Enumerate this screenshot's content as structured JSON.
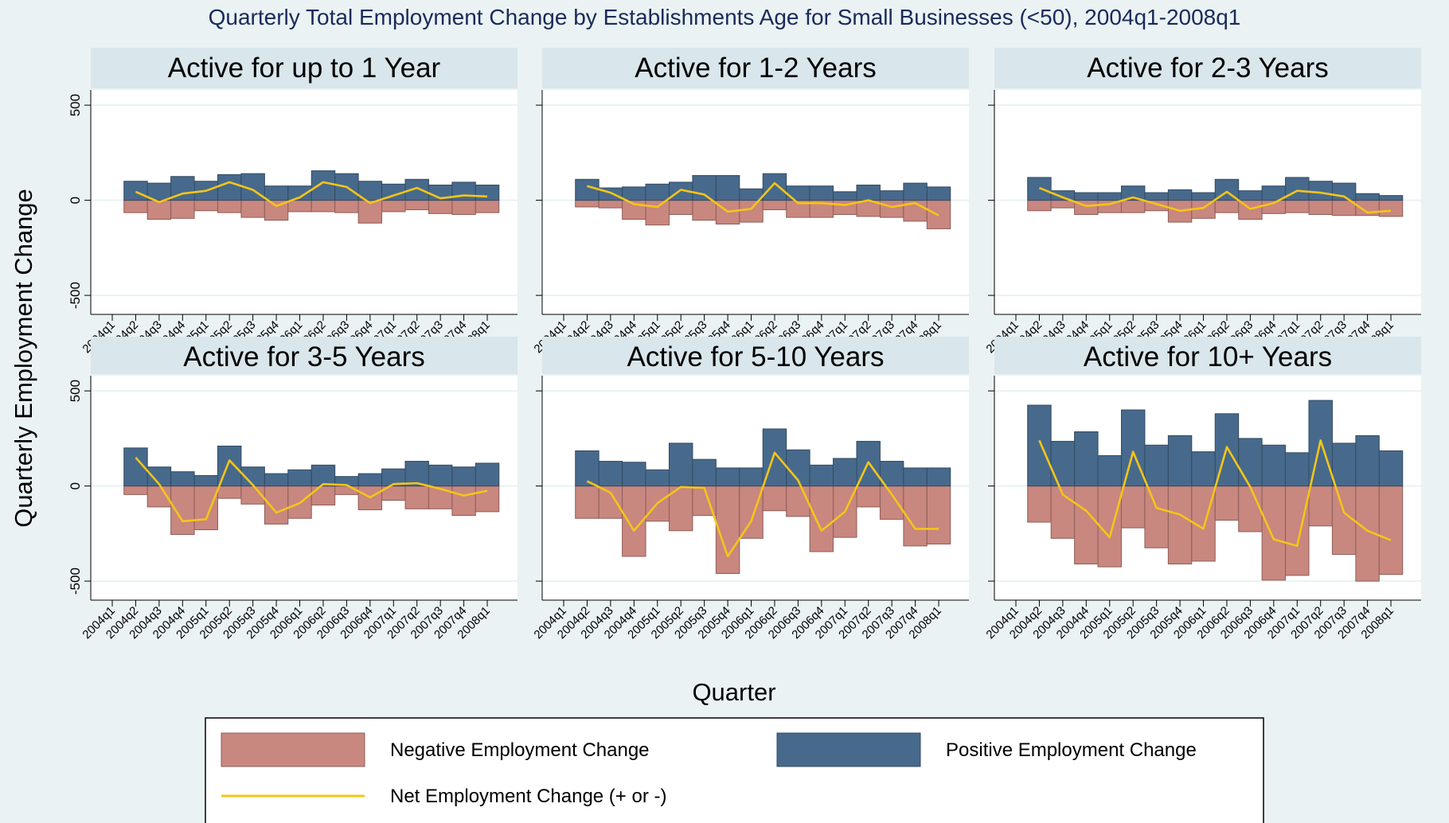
{
  "chart_data": {
    "type": "bar",
    "title": "Quarterly Total Employment Change by Establishments Age for Small Businesses (<50), 2004q1-2008q1",
    "x_label": "Quarter",
    "y_label": "Quarterly Employment Change",
    "categories": [
      "2004q1",
      "2004q2",
      "2004q3",
      "2004q4",
      "2005q1",
      "2005q2",
      "2005q3",
      "2005q4",
      "2006q1",
      "2006q2",
      "2006q3",
      "2006q4",
      "2007q1",
      "2007q2",
      "2007q3",
      "2007q4",
      "2008q1"
    ],
    "ylim": [
      -600,
      580
    ],
    "yticks": [
      -500,
      0,
      500
    ],
    "grid": true,
    "series": [
      {
        "name": "Negative Employment Change",
        "color": "#c8877f",
        "type": "bar"
      },
      {
        "name": "Positive Employment Change",
        "color": "#476a8c",
        "type": "bar"
      },
      {
        "name": "Net Employment Change (+ or -)",
        "color": "#f5c518",
        "type": "line"
      }
    ],
    "panels": [
      {
        "title": "Active for up to 1 Year",
        "values": [
          [
            null,
            -65,
            -100,
            -95,
            -55,
            -65,
            -90,
            -105,
            -60,
            -60,
            -65,
            -120,
            -60,
            -50,
            -70,
            -75,
            -65
          ],
          [
            null,
            100,
            90,
            125,
            100,
            135,
            140,
            75,
            75,
            155,
            140,
            100,
            85,
            110,
            80,
            95,
            80
          ],
          [
            null,
            45,
            -10,
            35,
            50,
            95,
            55,
            -30,
            15,
            95,
            70,
            -15,
            25,
            65,
            10,
            25,
            20
          ]
        ]
      },
      {
        "title": "Active for 1-2 Years",
        "values": [
          [
            null,
            -35,
            -40,
            -100,
            -130,
            -75,
            -105,
            -125,
            -115,
            -50,
            -90,
            -90,
            -75,
            -85,
            -90,
            -110,
            -150
          ],
          [
            null,
            110,
            65,
            70,
            85,
            95,
            130,
            130,
            60,
            140,
            75,
            75,
            45,
            80,
            50,
            90,
            70
          ],
          [
            null,
            75,
            40,
            -20,
            -35,
            55,
            30,
            -60,
            -45,
            90,
            -15,
            -15,
            -25,
            0,
            -35,
            -15,
            -80
          ]
        ]
      },
      {
        "title": "Active for 2-3 Years",
        "values": [
          [
            null,
            -55,
            -40,
            -75,
            -65,
            -65,
            -55,
            -115,
            -95,
            -65,
            -100,
            -70,
            -65,
            -75,
            -80,
            -80,
            -85
          ],
          [
            null,
            120,
            50,
            40,
            40,
            75,
            40,
            55,
            40,
            110,
            50,
            75,
            120,
            100,
            90,
            35,
            25
          ],
          [
            null,
            65,
            15,
            -30,
            -20,
            15,
            -20,
            -55,
            -40,
            45,
            -45,
            -15,
            50,
            40,
            20,
            -65,
            -55
          ]
        ]
      },
      {
        "title": "Active for 3-5 Years",
        "values": [
          [
            null,
            -45,
            -110,
            -255,
            -230,
            -65,
            -95,
            -200,
            -170,
            -100,
            -45,
            -125,
            -75,
            -120,
            -120,
            -155,
            -135
          ],
          [
            null,
            200,
            100,
            75,
            55,
            210,
            100,
            65,
            85,
            110,
            50,
            65,
            90,
            130,
            110,
            100,
            120
          ],
          [
            null,
            150,
            10,
            -185,
            -175,
            135,
            5,
            -140,
            -90,
            10,
            5,
            -60,
            10,
            15,
            -15,
            -50,
            -25
          ]
        ]
      },
      {
        "title": "Active for 5-10 Years",
        "values": [
          [
            null,
            -170,
            -170,
            -370,
            -185,
            -235,
            -155,
            -460,
            -275,
            -130,
            -160,
            -345,
            -270,
            -110,
            -175,
            -315,
            -305
          ],
          [
            null,
            185,
            130,
            125,
            85,
            225,
            140,
            95,
            95,
            300,
            190,
            110,
            145,
            235,
            130,
            95,
            95
          ],
          [
            null,
            25,
            -35,
            -235,
            -90,
            -5,
            -10,
            -370,
            -185,
            175,
            30,
            -235,
            -135,
            125,
            -45,
            -225,
            -225
          ]
        ]
      },
      {
        "title": "Active for 10+ Years",
        "values": [
          [
            null,
            -190,
            -275,
            -410,
            -425,
            -220,
            -325,
            -410,
            -395,
            -180,
            -240,
            -495,
            -470,
            -210,
            -360,
            -500,
            -465
          ],
          [
            null,
            425,
            235,
            285,
            160,
            400,
            215,
            265,
            180,
            380,
            250,
            215,
            175,
            450,
            225,
            265,
            185
          ],
          [
            null,
            240,
            -45,
            -130,
            -270,
            180,
            -115,
            -150,
            -225,
            205,
            -5,
            -280,
            -315,
            240,
            -140,
            -235,
            -285
          ]
        ]
      }
    ]
  }
}
